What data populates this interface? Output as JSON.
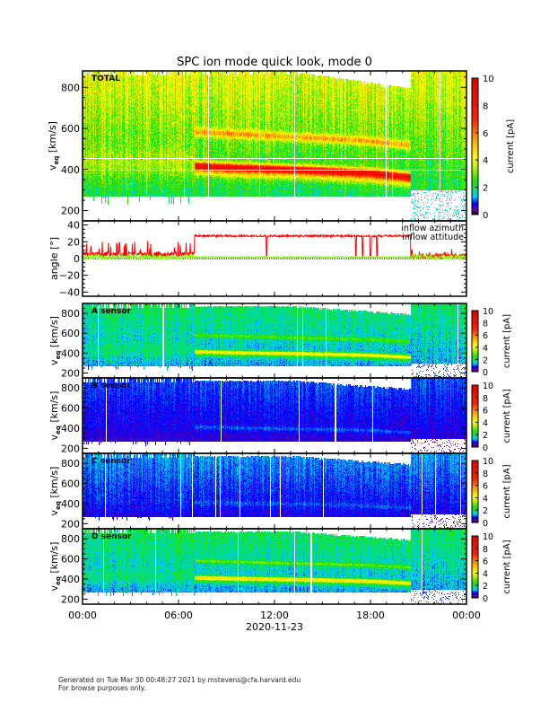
{
  "title": "SPC ion mode quick look, mode 0",
  "footer": {
    "line1": "Generated on Tue Mar 30 00:48:27 2021 by mstevens@cfa.harvard.edu",
    "line2": "For browse purposes only."
  },
  "chart_data": {
    "type": "heatmap",
    "xlabel": "2020-11-23",
    "x_ticks": [
      "00:00",
      "06:00",
      "12:00",
      "18:00",
      "00:00"
    ],
    "x_range_hours": [
      0,
      24
    ],
    "colorbar": {
      "label": "current [pA]",
      "range": [
        0,
        10
      ],
      "ticks": [
        "0",
        "2",
        "4",
        "6",
        "8",
        "10"
      ]
    },
    "colors": {
      "azimuth": "#ff0000",
      "attitude": "#80ff00"
    },
    "panels": [
      {
        "id": "total",
        "label": "TOTAL",
        "ylabel": "v",
        "ylabel_sub": "eq",
        "yunit": "[km/s]",
        "yrange": [
          150,
          880
        ],
        "yticks": [
          "200",
          "400",
          "600",
          "800"
        ],
        "base_current": 2.2,
        "high_speed_gain": 1.8,
        "core_peak": 5.5,
        "secondary_peak": 2.5,
        "white_lines_kms": [
          400,
          455
        ]
      },
      {
        "id": "angle",
        "ylabel": "angle [°]",
        "yrange": [
          -45,
          45
        ],
        "yticks": [
          "−40",
          "−20",
          "0",
          "20",
          "40"
        ],
        "legend": [
          "inflow azimuth",
          "inflow attitude"
        ],
        "azimuth_segments_deg": [
          [
            0,
            7,
            5
          ],
          [
            7,
            20.5,
            27
          ],
          [
            20.5,
            24,
            3
          ]
        ],
        "azimuth_dropouts_hours": [
          11.5,
          17.1,
          17.5,
          18.0,
          18.4
        ],
        "attitude_mean_deg": 2
      },
      {
        "id": "a",
        "label": "A sensor",
        "ylabel": "v",
        "ylabel_sub": "eq",
        "yunit": "[km/s]",
        "yrange": [
          150,
          900
        ],
        "yticks": [
          "200",
          "400",
          "600",
          "800"
        ],
        "base_current": 1.3,
        "high_speed_gain": 0.7,
        "core_peak": 2.6,
        "secondary_peak": 1.2
      },
      {
        "id": "b",
        "label": "B sensor",
        "ylabel": "v",
        "ylabel_sub": "eq",
        "yunit": "[km/s]",
        "yrange": [
          150,
          900
        ],
        "yticks": [
          "200",
          "400",
          "600",
          "800"
        ],
        "base_current": 0.6,
        "high_speed_gain": 0.4,
        "core_peak": 0.3,
        "secondary_peak": 0
      },
      {
        "id": "c",
        "label": "C sensor",
        "ylabel": "v",
        "ylabel_sub": "eq",
        "yunit": "[km/s]",
        "yrange": [
          150,
          900
        ],
        "yticks": [
          "200",
          "400",
          "600",
          "800"
        ],
        "base_current": 0.7,
        "high_speed_gain": 0.5,
        "core_peak": 0.2,
        "secondary_peak": 0
      },
      {
        "id": "d",
        "label": "D sensor",
        "ylabel": "v",
        "ylabel_sub": "eq",
        "yunit": "[km/s]",
        "yrange": [
          150,
          900
        ],
        "yticks": [
          "200",
          "400",
          "600",
          "800"
        ],
        "base_current": 1.3,
        "high_speed_gain": 0.8,
        "core_peak": 2.8,
        "secondary_peak": 1.3
      }
    ],
    "core_speed_track_kms": [
      [
        7,
        420
      ],
      [
        10,
        410
      ],
      [
        14,
        400
      ],
      [
        18,
        385
      ],
      [
        20.5,
        365
      ]
    ],
    "secondary_band_kms": [
      [
        7,
        585
      ],
      [
        12,
        565
      ],
      [
        18,
        540
      ],
      [
        20.5,
        520
      ]
    ],
    "regime_change_hours": [
      7,
      20.5
    ]
  }
}
